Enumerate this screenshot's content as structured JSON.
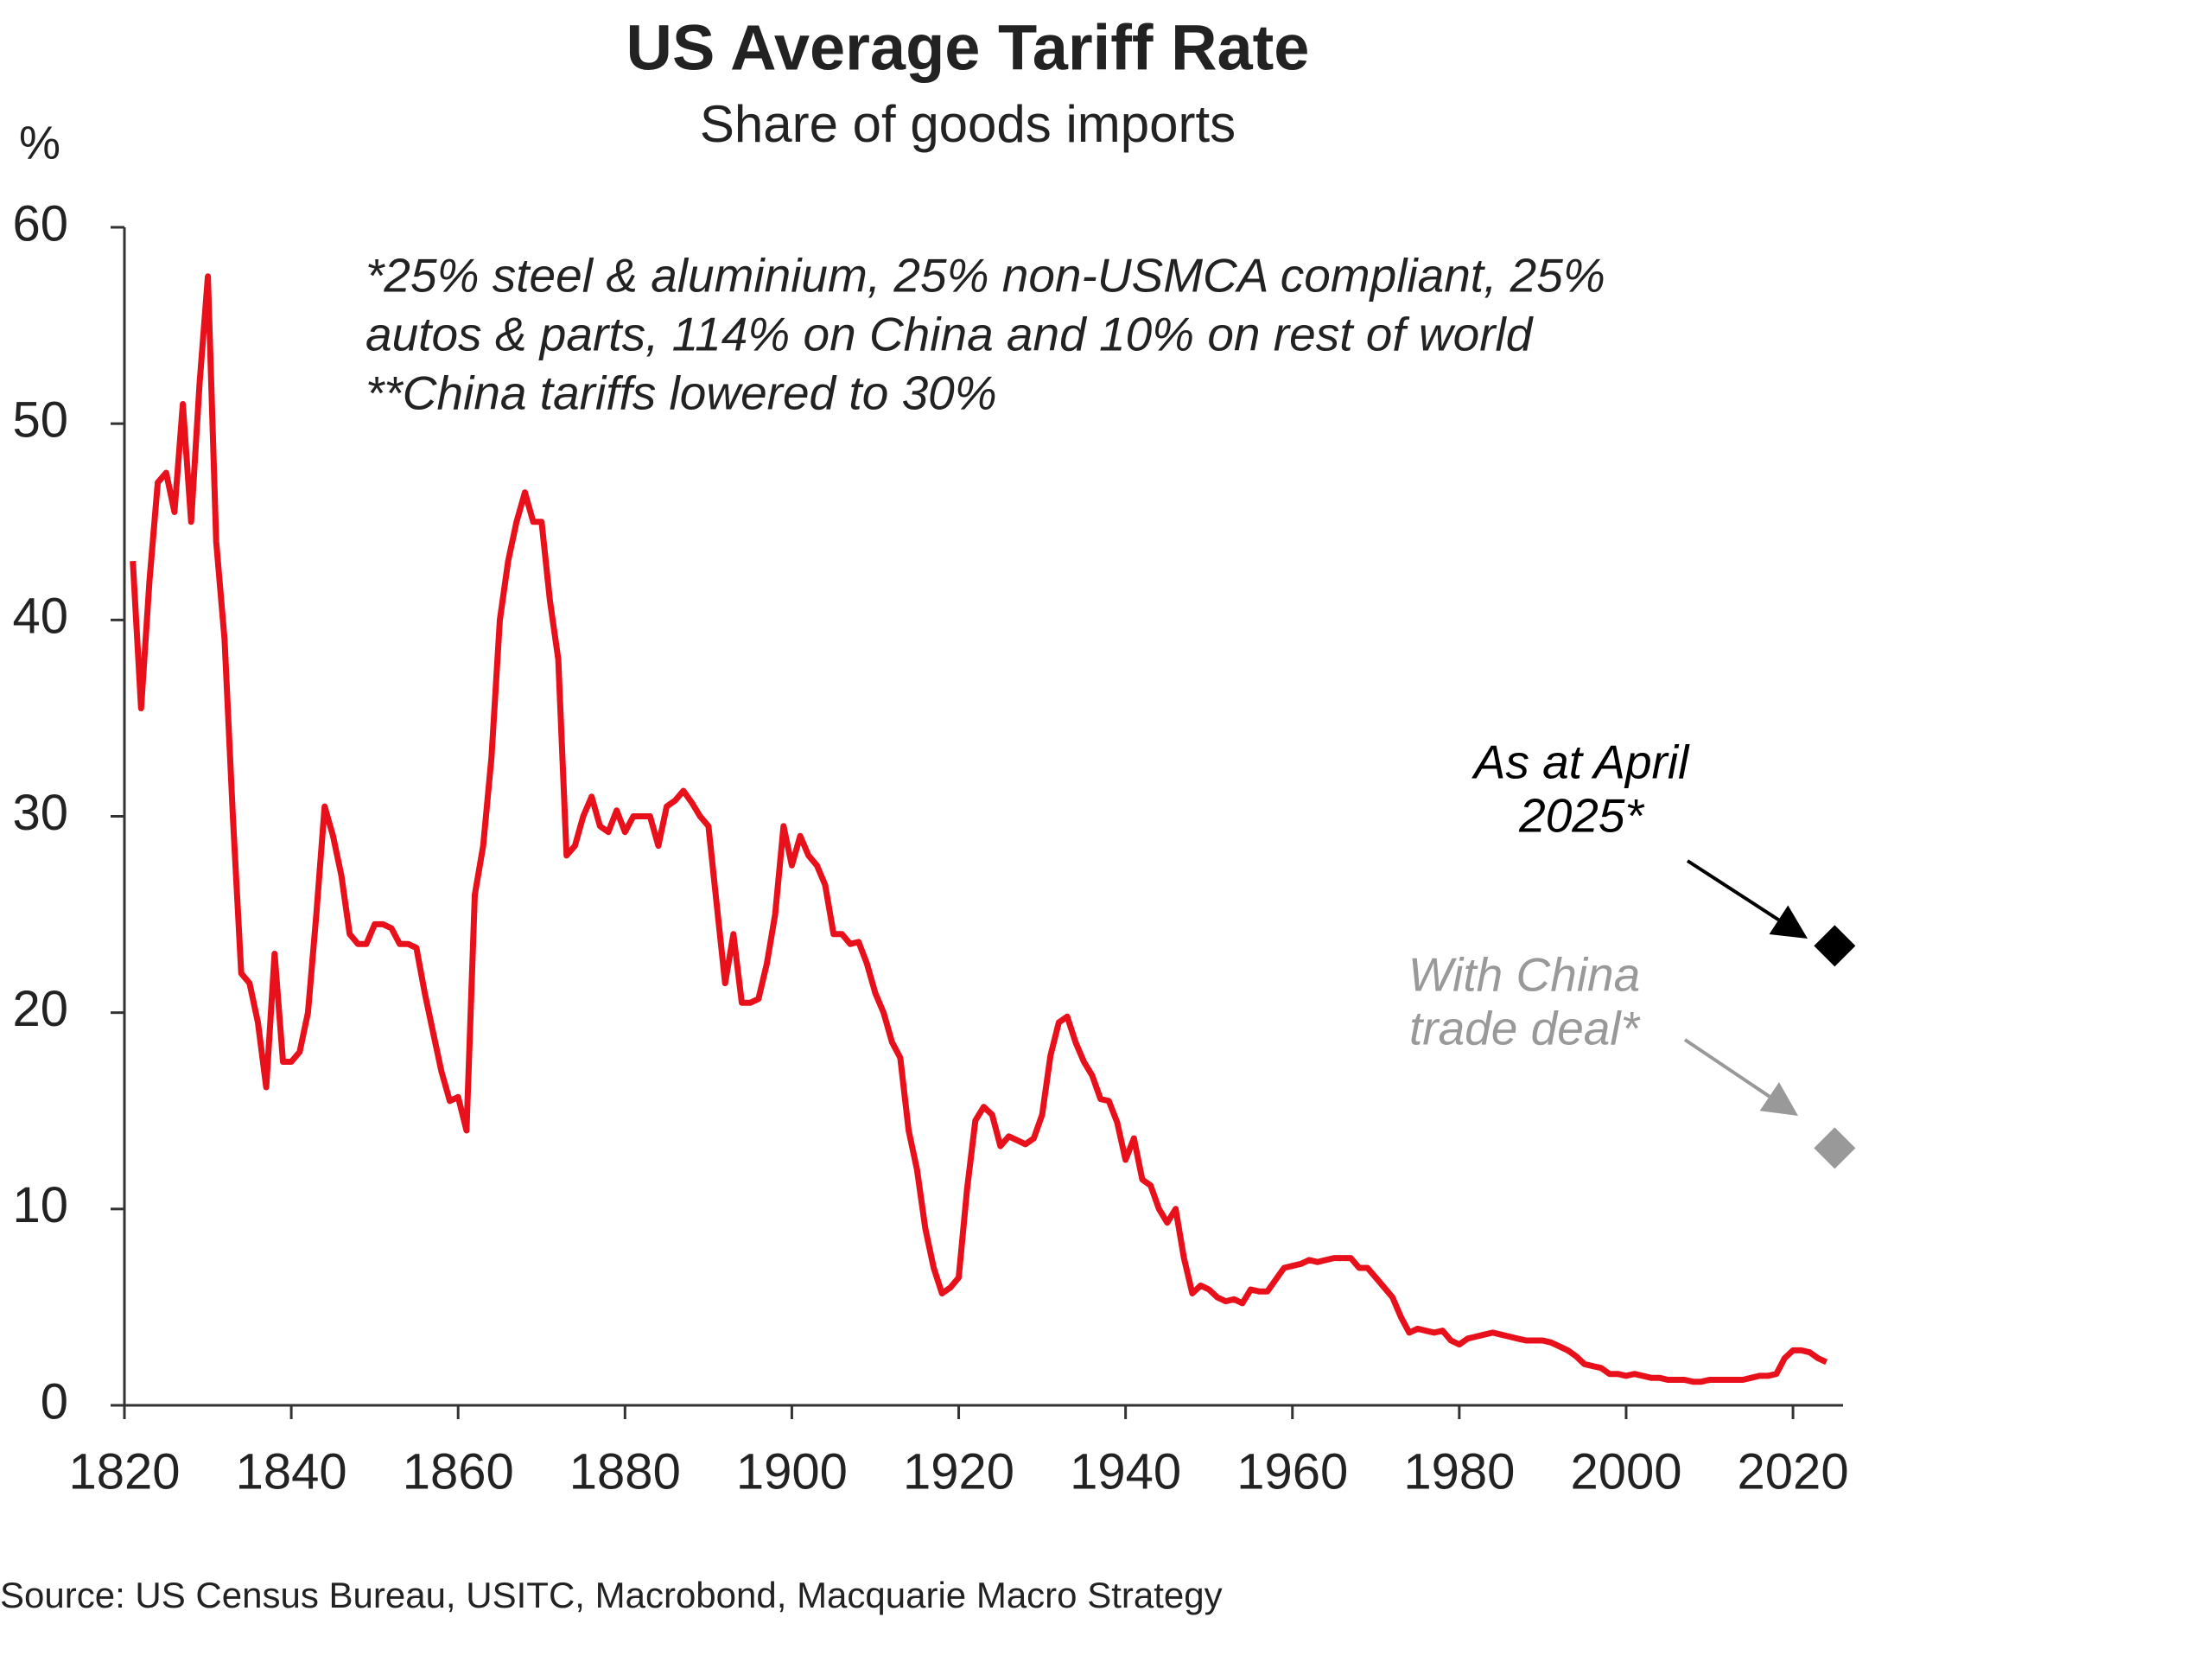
{
  "chart_data": {
    "type": "line",
    "title": "US Average Tariff Rate",
    "subtitle": "Share of goods imports",
    "y_label": "%",
    "note_lines": [
      "*25% steel & aluminium, 25% non-USMCA compliant, 25%",
      "autos & parts, 114% on China and 10% on rest of world",
      "**China tariffs lowered to 30%"
    ],
    "source": "Source: US Census Bureau, USITC, Macrobond, Macquarie Macro Strategy",
    "color": "#e8101a",
    "x": [
      1821,
      1822,
      1823,
      1824,
      1825,
      1826,
      1827,
      1828,
      1829,
      1830,
      1831,
      1832,
      1833,
      1834,
      1835,
      1836,
      1837,
      1838,
      1839,
      1840,
      1841,
      1842,
      1843,
      1844,
      1845,
      1846,
      1847,
      1848,
      1849,
      1850,
      1851,
      1852,
      1853,
      1854,
      1855,
      1856,
      1857,
      1858,
      1859,
      1860,
      1861,
      1862,
      1863,
      1864,
      1865,
      1866,
      1867,
      1868,
      1869,
      1870,
      1871,
      1872,
      1873,
      1874,
      1875,
      1876,
      1877,
      1878,
      1879,
      1880,
      1881,
      1882,
      1883,
      1884,
      1885,
      1886,
      1887,
      1888,
      1889,
      1890,
      1891,
      1892,
      1893,
      1894,
      1895,
      1896,
      1897,
      1898,
      1899,
      1900,
      1901,
      1902,
      1903,
      1904,
      1905,
      1906,
      1907,
      1908,
      1909,
      1910,
      1911,
      1912,
      1913,
      1914,
      1915,
      1916,
      1917,
      1918,
      1919,
      1920,
      1921,
      1922,
      1923,
      1924,
      1925,
      1926,
      1927,
      1928,
      1929,
      1930,
      1931,
      1932,
      1933,
      1934,
      1935,
      1936,
      1937,
      1938,
      1939,
      1940,
      1941,
      1942,
      1943,
      1944,
      1945,
      1946,
      1947,
      1948,
      1949,
      1950,
      1951,
      1952,
      1953,
      1954,
      1955,
      1956,
      1957,
      1958,
      1959,
      1960,
      1961,
      1962,
      1963,
      1964,
      1965,
      1966,
      1967,
      1968,
      1969,
      1970,
      1971,
      1972,
      1973,
      1974,
      1975,
      1976,
      1977,
      1978,
      1979,
      1980,
      1981,
      1982,
      1983,
      1984,
      1985,
      1986,
      1987,
      1988,
      1989,
      1990,
      1991,
      1992,
      1993,
      1994,
      1995,
      1996,
      1997,
      1998,
      1999,
      2000,
      2001,
      2002,
      2003,
      2004,
      2005,
      2006,
      2007,
      2008,
      2009,
      2010,
      2011,
      2012,
      2013,
      2014,
      2015,
      2016,
      2017,
      2018,
      2019,
      2020,
      2021,
      2022,
      2023,
      2024
    ],
    "values": [
      43,
      35.5,
      42,
      47,
      47.5,
      45.5,
      51,
      45,
      52,
      57.5,
      44,
      39,
      30,
      22,
      21.5,
      19.5,
      16.2,
      23,
      17.5,
      17.5,
      18,
      20,
      25,
      30.5,
      29,
      27,
      24,
      23.5,
      23.5,
      24.5,
      24.5,
      24.3,
      23.5,
      23.5,
      23.3,
      21,
      19,
      17,
      15.5,
      15.7,
      14,
      26,
      28.5,
      33,
      40,
      43,
      45,
      46.5,
      45,
      45,
      41,
      38,
      28,
      28.5,
      30,
      31,
      29.5,
      29.2,
      30.3,
      29.2,
      30,
      30,
      30,
      28.5,
      30.5,
      30.8,
      31.3,
      30.7,
      30,
      29.5,
      25.5,
      21.5,
      24,
      20.5,
      20.5,
      20.7,
      22.5,
      25,
      29.5,
      27.5,
      29,
      28,
      27.5,
      26.5,
      24,
      24,
      23.5,
      23.6,
      22.5,
      21,
      20,
      18.5,
      17.7,
      14,
      12,
      9,
      7,
      5.7,
      6,
      6.5,
      11,
      14.5,
      15.2,
      14.8,
      13.2,
      13.7,
      13.5,
      13.3,
      13.6,
      14.8,
      17.8,
      19.5,
      19.8,
      18.5,
      17.5,
      16.8,
      15.6,
      15.5,
      14.4,
      12.5,
      13.6,
      11.5,
      11.2,
      10,
      9.3,
      10,
      7.5,
      5.7,
      6.1,
      5.9,
      5.5,
      5.3,
      5.4,
      5.2,
      5.9,
      5.8,
      5.8,
      6.4,
      7,
      7.1,
      7.2,
      7.4,
      7.3,
      7.4,
      7.5,
      7.5,
      7.5,
      7,
      7,
      6.5,
      6,
      5.5,
      4.5,
      3.7,
      3.9,
      3.8,
      3.7,
      3.8,
      3.3,
      3.1,
      3.4,
      3.5,
      3.6,
      3.7,
      3.6,
      3.5,
      3.4,
      3.3,
      3.3,
      3.3,
      3.2,
      3,
      2.8,
      2.5,
      2.1,
      2,
      1.9,
      1.6,
      1.6,
      1.5,
      1.6,
      1.5,
      1.4,
      1.4,
      1.3,
      1.3,
      1.3,
      1.2,
      1.2,
      1.3,
      1.3,
      1.3,
      1.3,
      1.3,
      1.4,
      1.5,
      1.5,
      1.6,
      2.4,
      2.8,
      2.8,
      2.7,
      2.4,
      2.2
    ],
    "points": [
      {
        "x": 2025,
        "value": 23.4,
        "color": "#000000",
        "label": [
          "As at April",
          "2025*"
        ]
      },
      {
        "x": 2025,
        "value": 13.1,
        "color": "#999999",
        "label": [
          "With China",
          "trade deal*"
        ]
      }
    ],
    "xlim": [
      1820,
      2026
    ],
    "ylim": [
      0,
      60
    ],
    "xticks": [
      1820,
      1840,
      1860,
      1880,
      1900,
      1920,
      1940,
      1960,
      1980,
      2000,
      2020
    ],
    "yticks": [
      0,
      10,
      20,
      30,
      40,
      50,
      60
    ]
  }
}
